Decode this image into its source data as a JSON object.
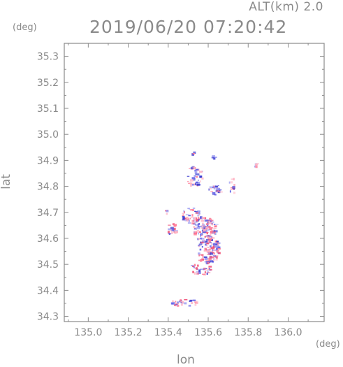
{
  "header": {
    "altitude_label": "ALT(km) 2.0",
    "timestamp": "2019/06/20 07:20:42"
  },
  "axes": {
    "x_unit": "(deg)",
    "y_unit": "(deg)",
    "x_label": "lon",
    "y_label": "lat"
  },
  "chart_data": {
    "type": "heatmap",
    "title": "2019/06/20 07:20:42",
    "subtitle": "ALT(km) 2.0",
    "xlabel": "lon",
    "ylabel": "lat",
    "xlim": [
      134.88,
      136.18
    ],
    "ylim": [
      34.28,
      35.35
    ],
    "x_ticks": [
      135.0,
      135.2,
      135.4,
      135.6,
      135.8,
      136.0
    ],
    "x_tick_labels": [
      "135.0",
      "135.2",
      "135.4",
      "135.6",
      "135.8",
      "136.0"
    ],
    "y_ticks": [
      34.3,
      34.4,
      34.5,
      34.6,
      34.7,
      34.8,
      34.9,
      35.0,
      35.1,
      35.2,
      35.3
    ],
    "y_tick_labels": [
      "34.3",
      "34.4",
      "34.5",
      "34.6",
      "34.7",
      "34.8",
      "34.9",
      "35.0",
      "35.1",
      "35.2",
      "35.3"
    ],
    "grid": false,
    "colors": {
      "positive": "#ff7a96",
      "negative": "#5a5ae6",
      "axis": "#8a8a8a"
    },
    "clusters": [
      {
        "lon": 135.52,
        "lat": 34.93,
        "rlon": 0.01,
        "rlat": 0.005,
        "n": 3
      },
      {
        "lon": 135.62,
        "lat": 34.915,
        "rlon": 0.015,
        "rlat": 0.008,
        "n": 6
      },
      {
        "lon": 135.84,
        "lat": 34.885,
        "rlon": 0.015,
        "rlat": 0.01,
        "n": 5
      },
      {
        "lon": 135.53,
        "lat": 34.84,
        "rlon": 0.045,
        "rlat": 0.04,
        "n": 40
      },
      {
        "lon": 135.63,
        "lat": 34.79,
        "rlon": 0.03,
        "rlat": 0.02,
        "n": 25
      },
      {
        "lon": 135.72,
        "lat": 34.805,
        "rlon": 0.02,
        "rlat": 0.03,
        "n": 14
      },
      {
        "lon": 135.39,
        "lat": 34.705,
        "rlon": 0.01,
        "rlat": 0.015,
        "n": 4
      },
      {
        "lon": 135.41,
        "lat": 34.64,
        "rlon": 0.03,
        "rlat": 0.025,
        "n": 20
      },
      {
        "lon": 135.51,
        "lat": 34.69,
        "rlon": 0.05,
        "rlat": 0.03,
        "n": 60
      },
      {
        "lon": 135.58,
        "lat": 34.64,
        "rlon": 0.06,
        "rlat": 0.05,
        "n": 130
      },
      {
        "lon": 135.6,
        "lat": 34.56,
        "rlon": 0.055,
        "rlat": 0.05,
        "n": 110
      },
      {
        "lon": 135.56,
        "lat": 34.49,
        "rlon": 0.05,
        "rlat": 0.03,
        "n": 45
      },
      {
        "lon": 135.48,
        "lat": 34.355,
        "rlon": 0.08,
        "rlat": 0.012,
        "n": 30
      }
    ]
  }
}
